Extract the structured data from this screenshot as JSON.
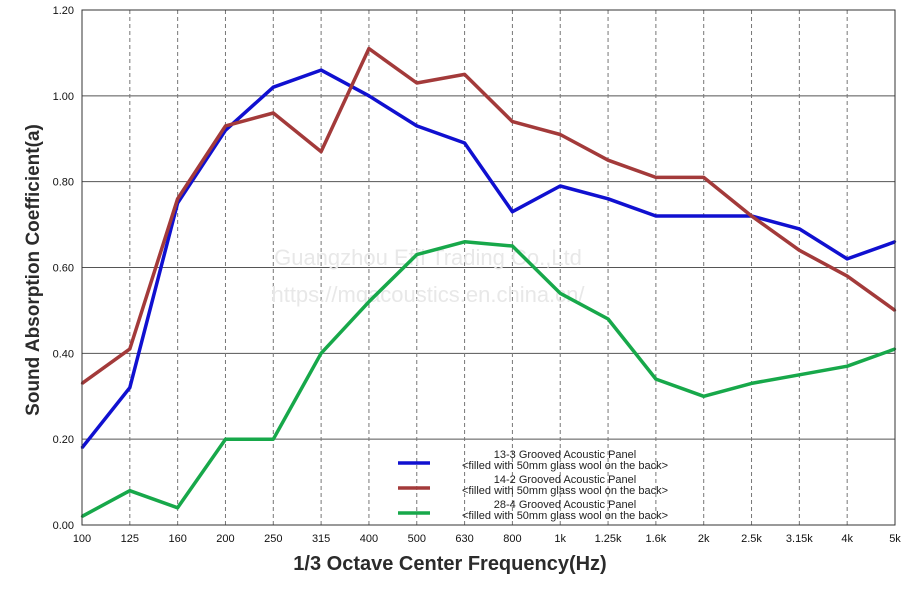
{
  "chart_data": {
    "type": "line",
    "xlabel": "1/3 Octave Center Frequency(Hz)",
    "ylabel": "Sound Absorption Coefficient(a)",
    "categories": [
      "100",
      "125",
      "160",
      "200",
      "250",
      "315",
      "400",
      "500",
      "630",
      "800",
      "1k",
      "1.25k",
      "1.6k",
      "2k",
      "2.5k",
      "3.15k",
      "4k",
      "5k"
    ],
    "ylim": [
      0,
      1.2
    ],
    "yticks": [
      "0.00",
      "0.20",
      "0.40",
      "0.60",
      "0.80",
      "1.00",
      "1.20"
    ],
    "grid": true,
    "legend_position": "bottom-center",
    "series": [
      {
        "name": "13-3 Grooved Acoustic Panel",
        "note": "<filled with 50mm glass wool on the back>",
        "color": "#1010d0",
        "values": [
          0.18,
          0.32,
          0.75,
          0.92,
          1.02,
          1.06,
          1.0,
          0.93,
          0.89,
          0.73,
          0.79,
          0.76,
          0.72,
          0.72,
          0.72,
          0.69,
          0.62,
          0.66
        ]
      },
      {
        "name": "14-2 Grooved Acoustic Panel",
        "note": "<filled with 50mm glass wool on the back>",
        "color": "#a33a3a",
        "values": [
          0.33,
          0.41,
          0.76,
          0.93,
          0.96,
          0.87,
          1.11,
          1.03,
          1.05,
          0.94,
          0.91,
          0.85,
          0.81,
          0.81,
          0.72,
          0.64,
          0.58,
          0.5
        ]
      },
      {
        "name": "28-4 Grooved Acoustic Panel",
        "note": "<filled with 50mm glass wool on the back>",
        "color": "#17a84a",
        "values": [
          0.02,
          0.08,
          0.04,
          0.2,
          0.2,
          0.4,
          0.52,
          0.63,
          0.66,
          0.65,
          0.54,
          0.48,
          0.34,
          0.3,
          0.33,
          0.35,
          0.37,
          0.41
        ]
      }
    ]
  },
  "watermark": {
    "line1": "Guangzhou Effi Trading Co.,Ltd",
    "line2": "https://mqacoustics.en.china.cn/"
  }
}
